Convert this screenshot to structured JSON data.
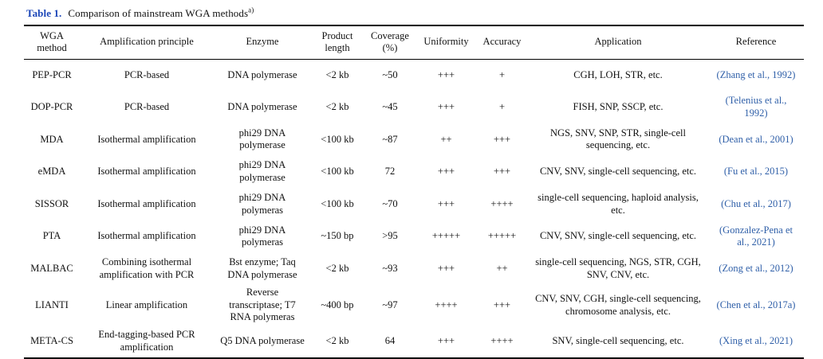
{
  "caption": {
    "label": "Table 1.",
    "text": "Comparison of mainstream WGA methods",
    "footnote_marker": "a)"
  },
  "colors": {
    "accent_blue": "#1b46b8",
    "reference_blue": "#2f5fa8"
  },
  "table": {
    "columns": [
      "WGA method",
      "Amplification principle",
      "Enzyme",
      "Product length",
      "Coverage (%)",
      "Uniformity",
      "Accuracy",
      "Application",
      "Reference"
    ],
    "rows": [
      {
        "method": "PEP-PCR",
        "principle": "PCR-based",
        "enzyme": "DNA polymerase",
        "product_length": "<2 kb",
        "coverage": "~50",
        "uniformity": "+++",
        "accuracy": "+",
        "application": "CGH, LOH, STR, etc.",
        "reference": "(Zhang et al., 1992)"
      },
      {
        "method": "DOP-PCR",
        "principle": "PCR-based",
        "enzyme": "DNA polymerase",
        "product_length": "<2 kb",
        "coverage": "~45",
        "uniformity": "+++",
        "accuracy": "+",
        "application": "FISH, SNP, SSCP, etc.",
        "reference": "(Telenius et al., 1992)"
      },
      {
        "method": "MDA",
        "principle": "Isothermal amplification",
        "enzyme": "phi29 DNA polymerase",
        "product_length": "<100 kb",
        "coverage": "~87",
        "uniformity": "++",
        "accuracy": "+++",
        "application": "NGS, SNV, SNP, STR, single-cell sequencing, etc.",
        "reference": "(Dean et al., 2001)"
      },
      {
        "method": "eMDA",
        "principle": "Isothermal amplification",
        "enzyme": "phi29 DNA polymerase",
        "product_length": "<100 kb",
        "coverage": "72",
        "uniformity": "+++",
        "accuracy": "+++",
        "application": "CNV, SNV, single-cell sequencing, etc.",
        "reference": "(Fu et al., 2015)"
      },
      {
        "method": "SISSOR",
        "principle": "Isothermal amplification",
        "enzyme": "phi29 DNA polymeras",
        "product_length": "<100 kb",
        "coverage": "~70",
        "uniformity": "+++",
        "accuracy": "++++",
        "application": "single-cell sequencing, haploid analysis, etc.",
        "reference": "(Chu et al., 2017)"
      },
      {
        "method": "PTA",
        "principle": "Isothermal amplification",
        "enzyme": "phi29 DNA polymeras",
        "product_length": "~150 bp",
        "coverage": ">95",
        "uniformity": "+++++",
        "accuracy": "+++++",
        "application": "CNV, SNV, single-cell sequencing, etc.",
        "reference": "(Gonzalez-Pena et al., 2021)"
      },
      {
        "method": "MALBAC",
        "principle": "Combining isothermal amplification with PCR",
        "enzyme": "Bst enzyme; Taq DNA polymerase",
        "product_length": "<2 kb",
        "coverage": "~93",
        "uniformity": "+++",
        "accuracy": "++",
        "application": "single-cell sequencing, NGS, STR, CGH, SNV, CNV, etc.",
        "reference": "(Zong et al., 2012)"
      },
      {
        "method": "LIANTI",
        "principle": "Linear amplification",
        "enzyme": "Reverse transcriptase; T7 RNA polymeras",
        "product_length": "~400 bp",
        "coverage": "~97",
        "uniformity": "++++",
        "accuracy": "+++",
        "application": "CNV, SNV, CGH, single-cell sequencing, chromosome analysis, etc.",
        "reference": "(Chen et al., 2017a)"
      },
      {
        "method": "META-CS",
        "principle": "End-tagging-based PCR amplification",
        "enzyme": "Q5 DNA polymerase",
        "product_length": "<2 kb",
        "coverage": "64",
        "uniformity": "+++",
        "accuracy": "++++",
        "application": "SNV, single-cell sequencing, etc.",
        "reference": "(Xing et al., 2021)"
      }
    ]
  }
}
